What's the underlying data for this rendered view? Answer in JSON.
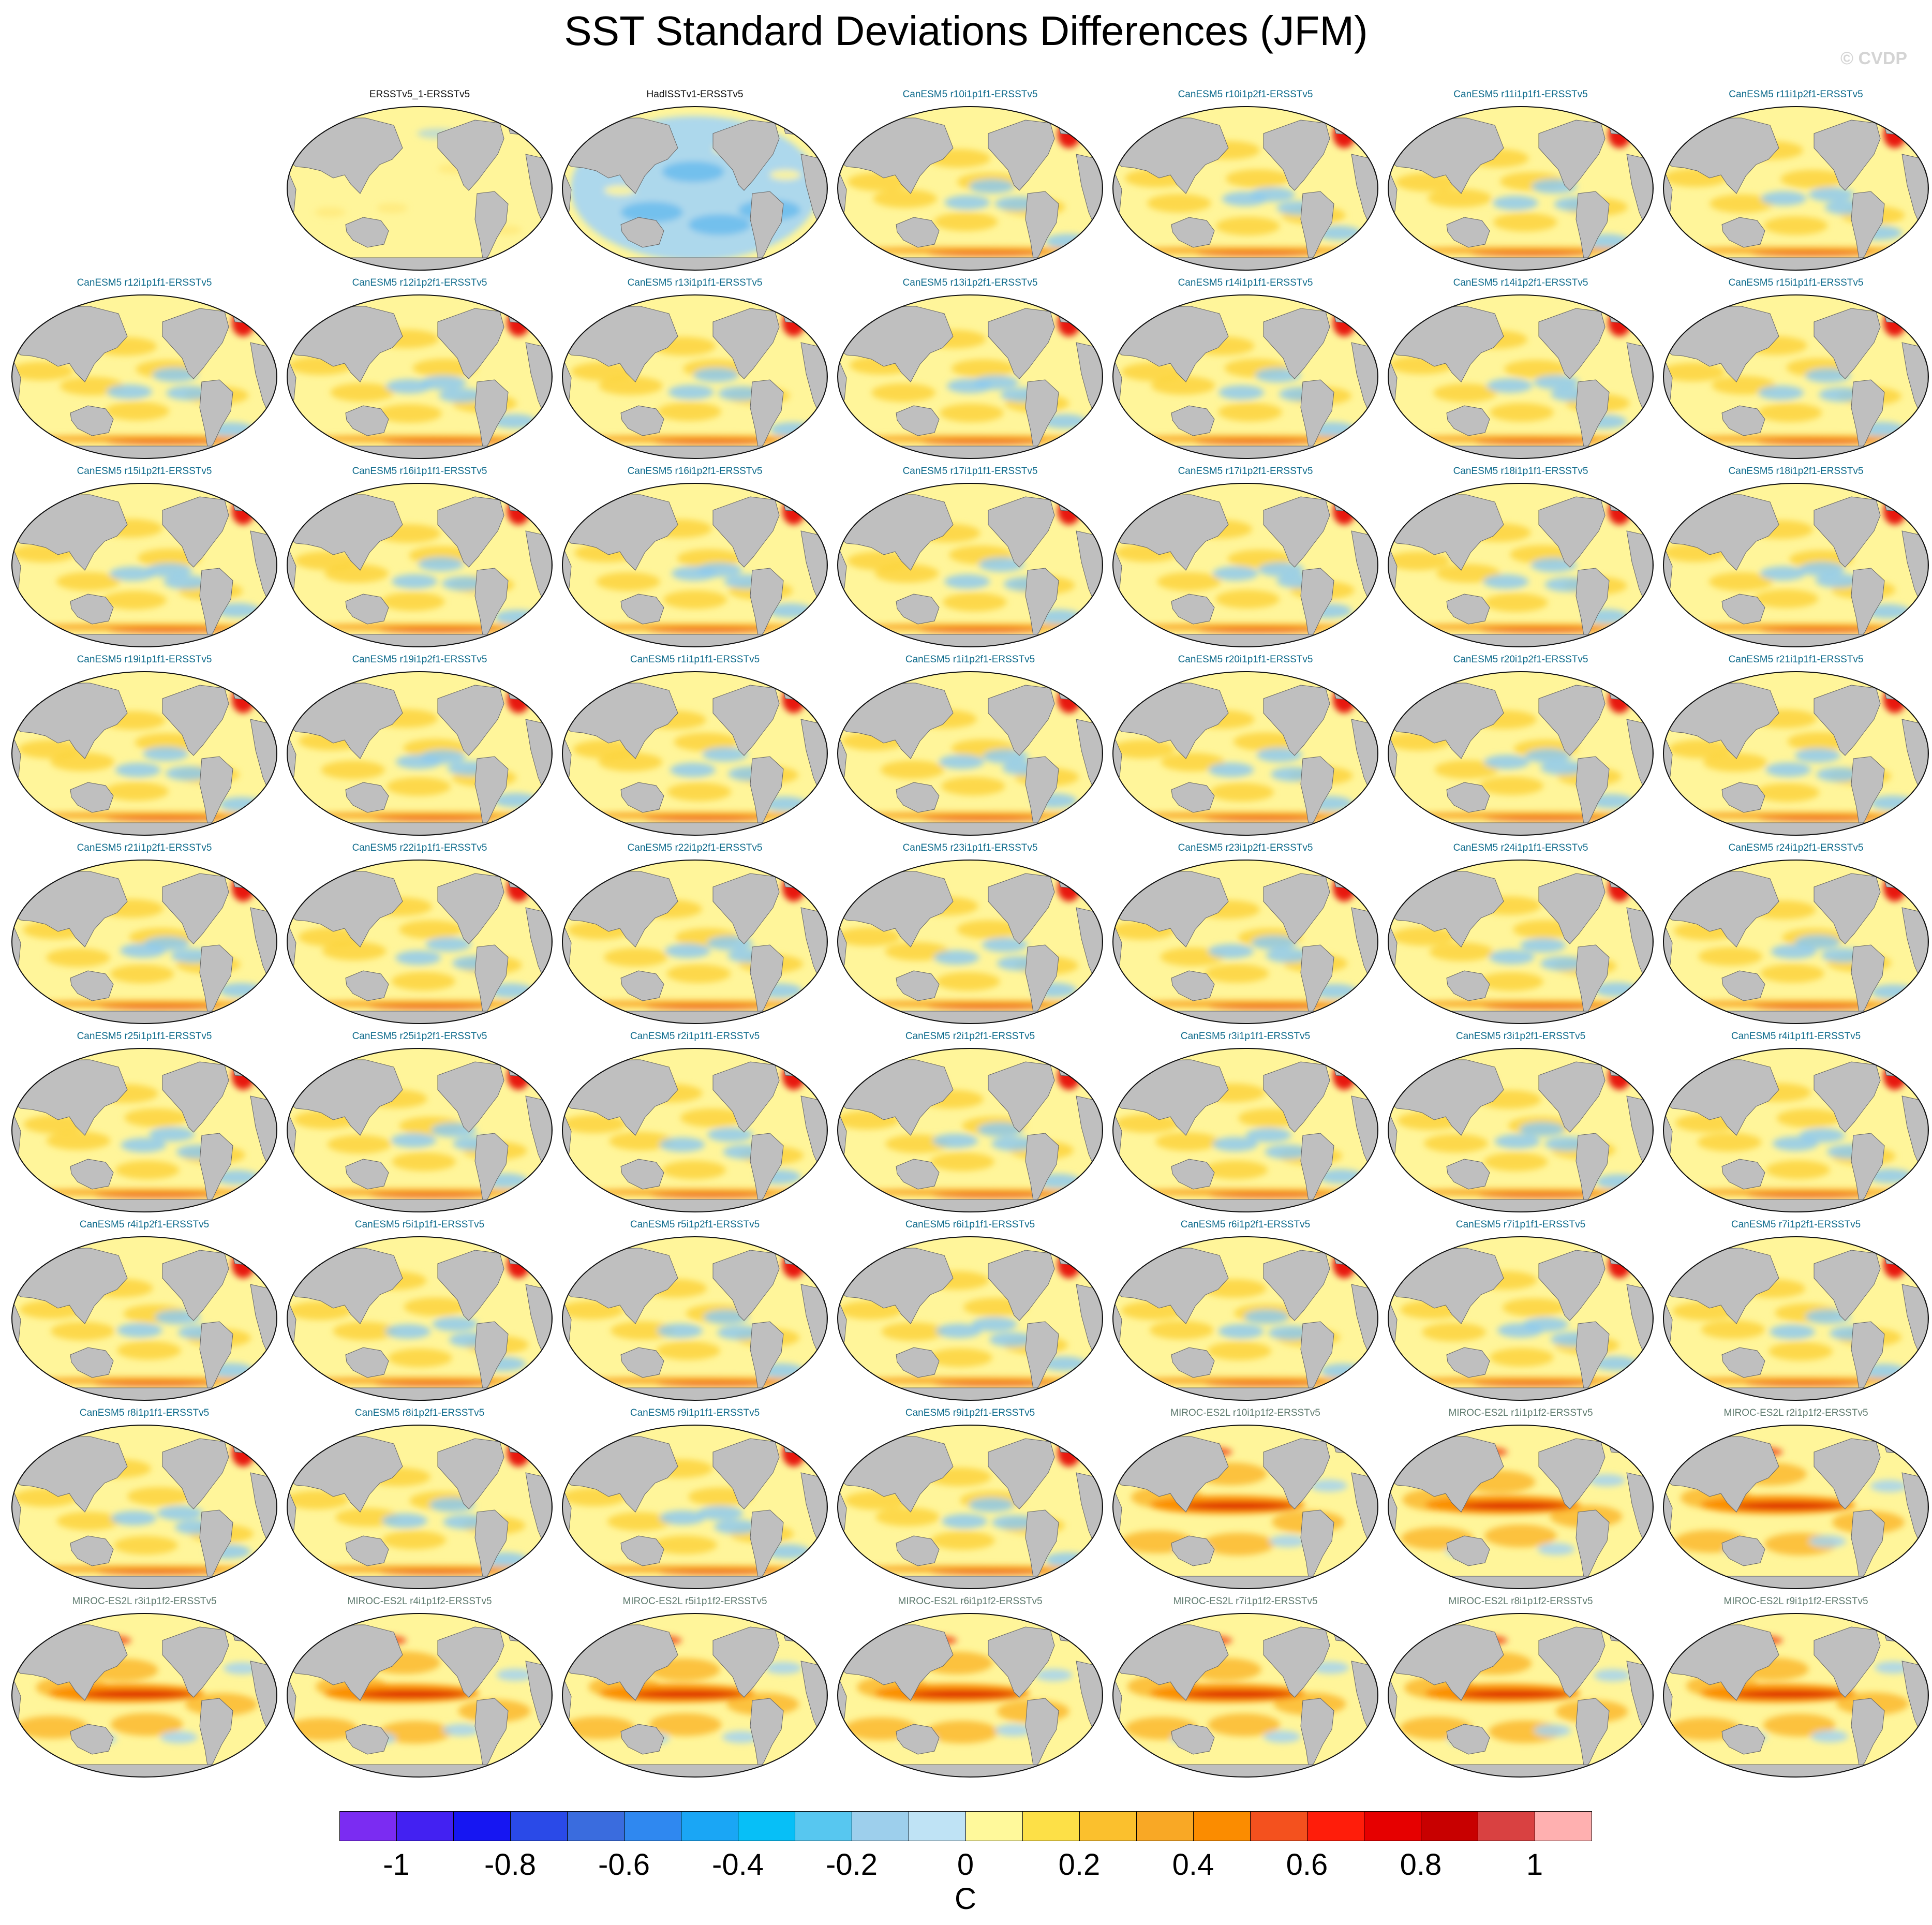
{
  "title": "SST Standard Deviations Differences (JFM)",
  "copyright": "© CVDP",
  "panels": [
    {
      "label": "ERSSTv5_1-ERSSTv5",
      "group": "obs"
    },
    {
      "label": "HadISSTv1-ERSSTv5",
      "group": "obs"
    },
    {
      "label": "CanESM5 r10i1p1f1-ERSSTv5",
      "group": "canesm"
    },
    {
      "label": "CanESM5 r10i1p2f1-ERSSTv5",
      "group": "canesm"
    },
    {
      "label": "CanESM5 r11i1p1f1-ERSSTv5",
      "group": "canesm"
    },
    {
      "label": "CanESM5 r11i1p2f1-ERSSTv5",
      "group": "canesm"
    },
    {
      "label": "CanESM5 r12i1p1f1-ERSSTv5",
      "group": "canesm"
    },
    {
      "label": "CanESM5 r12i1p2f1-ERSSTv5",
      "group": "canesm"
    },
    {
      "label": "CanESM5 r13i1p1f1-ERSSTv5",
      "group": "canesm"
    },
    {
      "label": "CanESM5 r13i1p2f1-ERSSTv5",
      "group": "canesm"
    },
    {
      "label": "CanESM5 r14i1p1f1-ERSSTv5",
      "group": "canesm"
    },
    {
      "label": "CanESM5 r14i1p2f1-ERSSTv5",
      "group": "canesm"
    },
    {
      "label": "CanESM5 r15i1p1f1-ERSSTv5",
      "group": "canesm"
    },
    {
      "label": "CanESM5 r15i1p2f1-ERSSTv5",
      "group": "canesm"
    },
    {
      "label": "CanESM5 r16i1p1f1-ERSSTv5",
      "group": "canesm"
    },
    {
      "label": "CanESM5 r16i1p2f1-ERSSTv5",
      "group": "canesm"
    },
    {
      "label": "CanESM5 r17i1p1f1-ERSSTv5",
      "group": "canesm"
    },
    {
      "label": "CanESM5 r17i1p2f1-ERSSTv5",
      "group": "canesm"
    },
    {
      "label": "CanESM5 r18i1p1f1-ERSSTv5",
      "group": "canesm"
    },
    {
      "label": "CanESM5 r18i1p2f1-ERSSTv5",
      "group": "canesm"
    },
    {
      "label": "CanESM5 r19i1p1f1-ERSSTv5",
      "group": "canesm"
    },
    {
      "label": "CanESM5 r19i1p2f1-ERSSTv5",
      "group": "canesm"
    },
    {
      "label": "CanESM5 r1i1p1f1-ERSSTv5",
      "group": "canesm"
    },
    {
      "label": "CanESM5 r1i1p2f1-ERSSTv5",
      "group": "canesm"
    },
    {
      "label": "CanESM5 r20i1p1f1-ERSSTv5",
      "group": "canesm"
    },
    {
      "label": "CanESM5 r20i1p2f1-ERSSTv5",
      "group": "canesm"
    },
    {
      "label": "CanESM5 r21i1p1f1-ERSSTv5",
      "group": "canesm"
    },
    {
      "label": "CanESM5 r21i1p2f1-ERSSTv5",
      "group": "canesm"
    },
    {
      "label": "CanESM5 r22i1p1f1-ERSSTv5",
      "group": "canesm"
    },
    {
      "label": "CanESM5 r22i1p2f1-ERSSTv5",
      "group": "canesm"
    },
    {
      "label": "CanESM5 r23i1p1f1-ERSSTv5",
      "group": "canesm"
    },
    {
      "label": "CanESM5 r23i1p2f1-ERSSTv5",
      "group": "canesm"
    },
    {
      "label": "CanESM5 r24i1p1f1-ERSSTv5",
      "group": "canesm"
    },
    {
      "label": "CanESM5 r24i1p2f1-ERSSTv5",
      "group": "canesm"
    },
    {
      "label": "CanESM5 r25i1p1f1-ERSSTv5",
      "group": "canesm"
    },
    {
      "label": "CanESM5 r25i1p2f1-ERSSTv5",
      "group": "canesm"
    },
    {
      "label": "CanESM5 r2i1p1f1-ERSSTv5",
      "group": "canesm"
    },
    {
      "label": "CanESM5 r2i1p2f1-ERSSTv5",
      "group": "canesm"
    },
    {
      "label": "CanESM5 r3i1p1f1-ERSSTv5",
      "group": "canesm"
    },
    {
      "label": "CanESM5 r3i1p2f1-ERSSTv5",
      "group": "canesm"
    },
    {
      "label": "CanESM5 r4i1p1f1-ERSSTv5",
      "group": "canesm"
    },
    {
      "label": "CanESM5 r4i1p2f1-ERSSTv5",
      "group": "canesm"
    },
    {
      "label": "CanESM5 r5i1p1f1-ERSSTv5",
      "group": "canesm"
    },
    {
      "label": "CanESM5 r5i1p2f1-ERSSTv5",
      "group": "canesm"
    },
    {
      "label": "CanESM5 r6i1p1f1-ERSSTv5",
      "group": "canesm"
    },
    {
      "label": "CanESM5 r6i1p2f1-ERSSTv5",
      "group": "canesm"
    },
    {
      "label": "CanESM5 r7i1p1f1-ERSSTv5",
      "group": "canesm"
    },
    {
      "label": "CanESM5 r7i1p2f1-ERSSTv5",
      "group": "canesm"
    },
    {
      "label": "CanESM5 r8i1p1f1-ERSSTv5",
      "group": "canesm"
    },
    {
      "label": "CanESM5 r8i1p2f1-ERSSTv5",
      "group": "canesm"
    },
    {
      "label": "CanESM5 r9i1p1f1-ERSSTv5",
      "group": "canesm"
    },
    {
      "label": "CanESM5 r9i1p2f1-ERSSTv5",
      "group": "canesm"
    },
    {
      "label": "MIROC-ES2L r10i1p1f2-ERSSTv5",
      "group": "miroc"
    },
    {
      "label": "MIROC-ES2L r1i1p1f2-ERSSTv5",
      "group": "miroc"
    },
    {
      "label": "MIROC-ES2L r2i1p1f2-ERSSTv5",
      "group": "miroc"
    },
    {
      "label": "MIROC-ES2L r3i1p1f2-ERSSTv5",
      "group": "miroc"
    },
    {
      "label": "MIROC-ES2L r4i1p1f2-ERSSTv5",
      "group": "miroc"
    },
    {
      "label": "MIROC-ES2L r5i1p1f2-ERSSTv5",
      "group": "miroc"
    },
    {
      "label": "MIROC-ES2L r6i1p1f2-ERSSTv5",
      "group": "miroc"
    },
    {
      "label": "MIROC-ES2L r7i1p1f2-ERSSTv5",
      "group": "miroc"
    },
    {
      "label": "MIROC-ES2L r8i1p1f2-ERSSTv5",
      "group": "miroc"
    },
    {
      "label": "MIROC-ES2L r9i1p1f2-ERSSTv5",
      "group": "miroc"
    }
  ],
  "chart_data": {
    "type": "heatmap",
    "title": "SST Standard Deviations Differences (JFM)",
    "projection": "Robinson-like global map, Pacific-centered",
    "panel_count": 62,
    "land_color": "#bfbfbf",
    "colorbar": {
      "unit": "C",
      "levels": [
        -1.0,
        -0.9,
        -0.8,
        -0.7,
        -0.6,
        -0.5,
        -0.4,
        -0.3,
        -0.2,
        -0.1,
        0.0,
        0.1,
        0.2,
        0.3,
        0.4,
        0.5,
        0.6,
        0.7,
        0.8,
        0.9,
        1.0
      ],
      "colors": [
        "#7b2cf2",
        "#4321f2",
        "#1616f2",
        "#2a4ae8",
        "#3a6cde",
        "#2f88f0",
        "#1aa6f5",
        "#07bff7",
        "#57c7f0",
        "#9dcfec",
        "#bfe3f5",
        "#fff99b",
        "#fde047",
        "#fbc02d",
        "#f9a825",
        "#fb8c00",
        "#f4511e",
        "#ff1d0a",
        "#e60000",
        "#c80000",
        "#d94141",
        "#ffb0b0"
      ],
      "tick_labels": [
        "-1",
        "-0.8",
        "-0.6",
        "-0.4",
        "-0.2",
        "0",
        "0.2",
        "0.4",
        "0.6",
        "0.8",
        "1"
      ],
      "tick_values": [
        -1.0,
        -0.8,
        -0.6,
        -0.4,
        -0.2,
        0.0,
        0.2,
        0.4,
        0.6,
        0.8,
        1.0
      ]
    }
  }
}
